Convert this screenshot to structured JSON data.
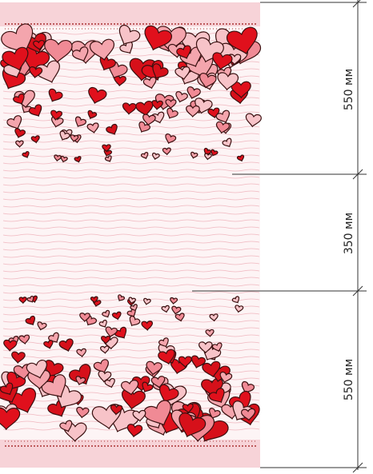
{
  "dimensions": [
    {
      "label": "550 мм"
    },
    {
      "label": "350 мм"
    },
    {
      "label": "550 мм"
    }
  ]
}
